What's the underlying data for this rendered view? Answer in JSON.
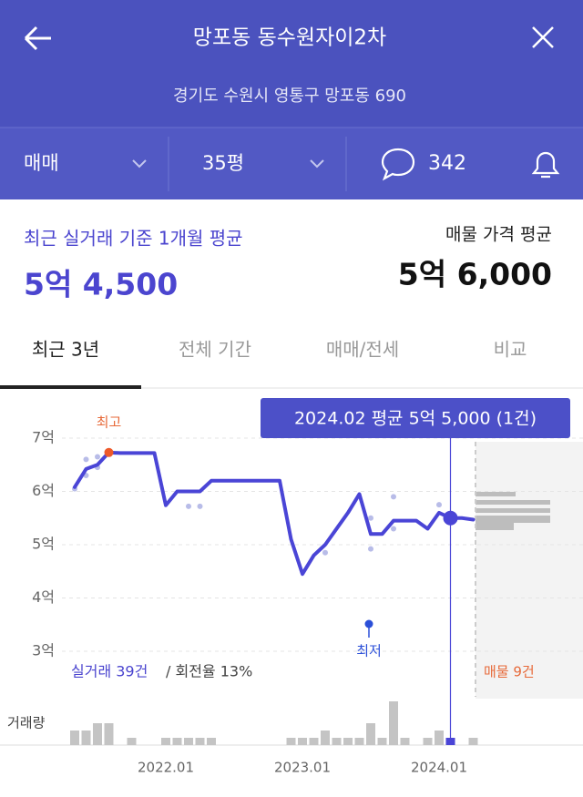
{
  "header": {
    "title": "망포동 동수원자이2차",
    "address": "경기도 수원시 영통구 망포동 690"
  },
  "filters": {
    "trade_type": "매매",
    "size": "35평",
    "comments": "342"
  },
  "summary": {
    "recent_label": "최근 실거래 기준 1개월 평균",
    "recent_price": "5억 4,500",
    "listing_label": "매물 가격 평균",
    "listing_price": "5억 6,000"
  },
  "tabs": [
    "최근 3년",
    "전체 기간",
    "매매/전세",
    "비교"
  ],
  "chart_data": {
    "type": "line",
    "x": [
      "2021.05",
      "2021.06",
      "2021.07",
      "2021.08",
      "2021.09",
      "2021.10",
      "2021.11",
      "2021.12",
      "2022.01",
      "2022.02",
      "2022.03",
      "2022.04",
      "2022.05",
      "2022.06",
      "2022.07",
      "2022.08",
      "2022.09",
      "2022.10",
      "2022.11",
      "2022.12",
      "2023.01",
      "2023.02",
      "2023.03",
      "2023.04",
      "2023.05",
      "2023.06",
      "2023.07",
      "2023.08",
      "2023.09",
      "2023.10",
      "2023.11",
      "2023.12",
      "2024.01",
      "2024.02",
      "2024.03",
      "2024.04"
    ],
    "series": [
      {
        "color": "#4a45d6",
        "values": [
          6.08,
          6.42,
          6.5,
          6.73,
          6.72,
          6.72,
          6.72,
          6.72,
          5.74,
          6.0,
          6.0,
          6.0,
          6.2,
          6.2,
          6.2,
          6.2,
          6.2,
          6.2,
          6.2,
          5.1,
          4.45,
          4.8,
          5.0,
          5.3,
          5.6,
          5.95,
          5.2,
          5.2,
          5.45,
          5.45,
          5.45,
          5.3,
          5.6,
          5.5,
          5.5,
          5.47
        ]
      }
    ],
    "trades": {
      "x": [
        "2021.05",
        "2021.06",
        "2021.06",
        "2021.07",
        "2021.07",
        "2021.08",
        "2022.03",
        "2022.04",
        "2023.03",
        "2023.07",
        "2023.07",
        "2023.09",
        "2023.09",
        "2024.01",
        "2024.02"
      ],
      "values": [
        6.05,
        6.3,
        6.6,
        6.45,
        6.65,
        6.7,
        5.72,
        5.72,
        4.85,
        4.92,
        5.5,
        5.9,
        5.3,
        5.75,
        5.5
      ],
      "color": "#b8bce8"
    },
    "volume": {
      "label": "거래량",
      "values": [
        2,
        2,
        3,
        3,
        0,
        1,
        0,
        0,
        1,
        1,
        1,
        1,
        1,
        0,
        0,
        0,
        0,
        0,
        0,
        1,
        1,
        1,
        2,
        1,
        1,
        1,
        3,
        1,
        6,
        1,
        0,
        1,
        2,
        1,
        0,
        1
      ],
      "color": "#c4c4c4"
    },
    "ylim": [
      3,
      7
    ],
    "yticks": [
      {
        "value": 3,
        "label": "3억"
      },
      {
        "value": 4,
        "label": "4억"
      },
      {
        "value": 5,
        "label": "5억"
      },
      {
        "value": 6,
        "label": "6억"
      },
      {
        "value": 7,
        "label": "7억"
      }
    ],
    "xticks": [
      "2022.01",
      "2023.01",
      "2024.01"
    ],
    "grid": true,
    "high_label": "최고",
    "low_label": "최저",
    "tooltip": "2024.02 평균 5억 5,000 (1건)",
    "trade_count": "실거래 39건",
    "turnover": "/ 회전율 13%",
    "listing_count": "매물 9건"
  }
}
